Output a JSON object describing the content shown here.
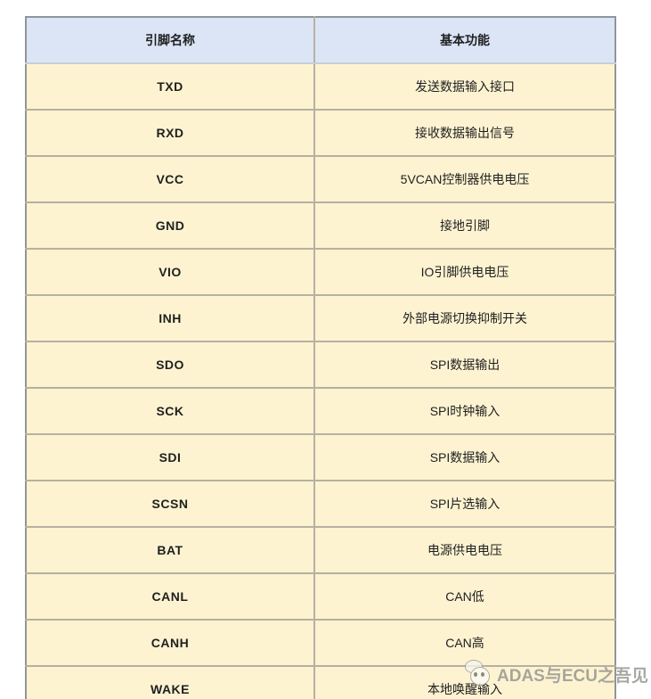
{
  "table": {
    "headers": [
      {
        "label": "引脚名称"
      },
      {
        "label": "基本功能"
      }
    ],
    "rows": [
      {
        "pin": "TXD",
        "func": "发送数据输入接口"
      },
      {
        "pin": "RXD",
        "func": "接收数据输出信号"
      },
      {
        "pin": "VCC",
        "func": "5VCAN控制器供电电压"
      },
      {
        "pin": "GND",
        "func": "接地引脚"
      },
      {
        "pin": "VIO",
        "func": "IO引脚供电电压"
      },
      {
        "pin": "INH",
        "func": "外部电源切换抑制开关"
      },
      {
        "pin": "SDO",
        "func": "SPI数据输出"
      },
      {
        "pin": "SCK",
        "func": "SPI时钟输入"
      },
      {
        "pin": "SDI",
        "func": "SPI数据输入"
      },
      {
        "pin": "SCSN",
        "func": "SPI片选输入"
      },
      {
        "pin": "BAT",
        "func": "电源供电电压"
      },
      {
        "pin": "CANL",
        "func": "CAN低"
      },
      {
        "pin": "CANH",
        "func": "CAN高"
      },
      {
        "pin": "WAKE",
        "func": "本地唤醒输入"
      }
    ]
  },
  "watermark": {
    "text": "ADAS与ECU之吾见",
    "icon": "panda-logo"
  },
  "colors": {
    "header_bg": "#dbe5f6",
    "row_bg": "#fdf3d1",
    "outer_border": "#8f959b",
    "inner_border": "#b6b1a0",
    "text": "#1f1f1f",
    "watermark_text": "#8f8f8a"
  }
}
